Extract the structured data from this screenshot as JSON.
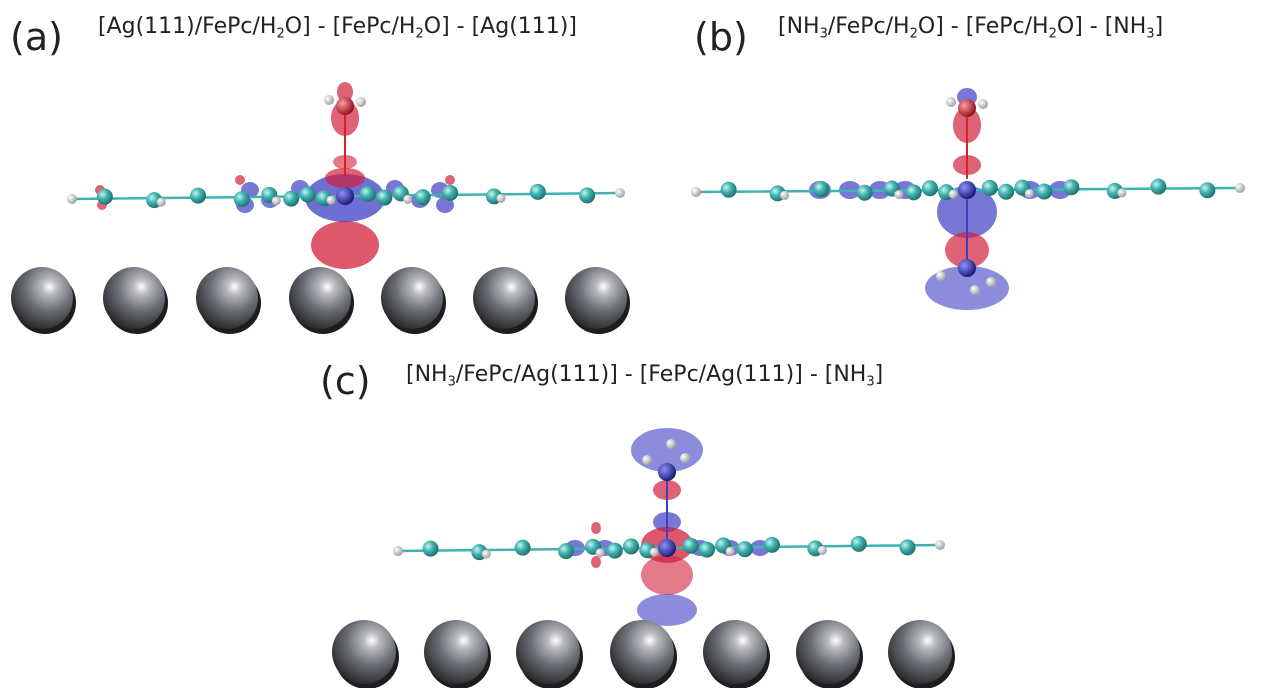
{
  "figure": {
    "panels": [
      {
        "id": "a",
        "label": "(a)",
        "formula": [
          {
            "t": "[Ag(111)/FePc/H"
          },
          {
            "sub": "2"
          },
          {
            "t": "O] - [FePc/H"
          },
          {
            "sub": "2"
          },
          {
            "t": "O] - [Ag(111)]"
          }
        ],
        "surface_atoms": 7,
        "adsorbate": "H2O",
        "adsorbate_side": "top"
      },
      {
        "id": "b",
        "label": "(b)",
        "formula": [
          {
            "t": "[NH"
          },
          {
            "sub": "3"
          },
          {
            "t": "/FePc/H"
          },
          {
            "sub": "2"
          },
          {
            "t": "O] - [FePc/H"
          },
          {
            "sub": "2"
          },
          {
            "t": "O] - [NH"
          },
          {
            "sub": "3"
          },
          {
            "t": "]"
          }
        ],
        "surface_atoms": 0,
        "adsorbate": "H2O + NH3",
        "adsorbate_side": "both"
      },
      {
        "id": "c",
        "label": "(c)",
        "formula": [
          {
            "t": "[NH"
          },
          {
            "sub": "3"
          },
          {
            "t": "/FePc/Ag(111)] - [FePc/Ag(111)] - [NH"
          },
          {
            "sub": "3"
          },
          {
            "t": "]"
          }
        ],
        "surface_atoms": 7,
        "adsorbate": "NH3",
        "adsorbate_side": "top"
      }
    ],
    "colors": {
      "carbon": "#3fb3b0",
      "hydrogen": "#f2f2f2",
      "iron": "#2c2fa0",
      "oxygen": "#d8202a",
      "silver": "#5a5d63",
      "density_gain": "#d21f3c",
      "density_loss": "#3d3fc4",
      "bond": "#3fb3b0"
    }
  }
}
